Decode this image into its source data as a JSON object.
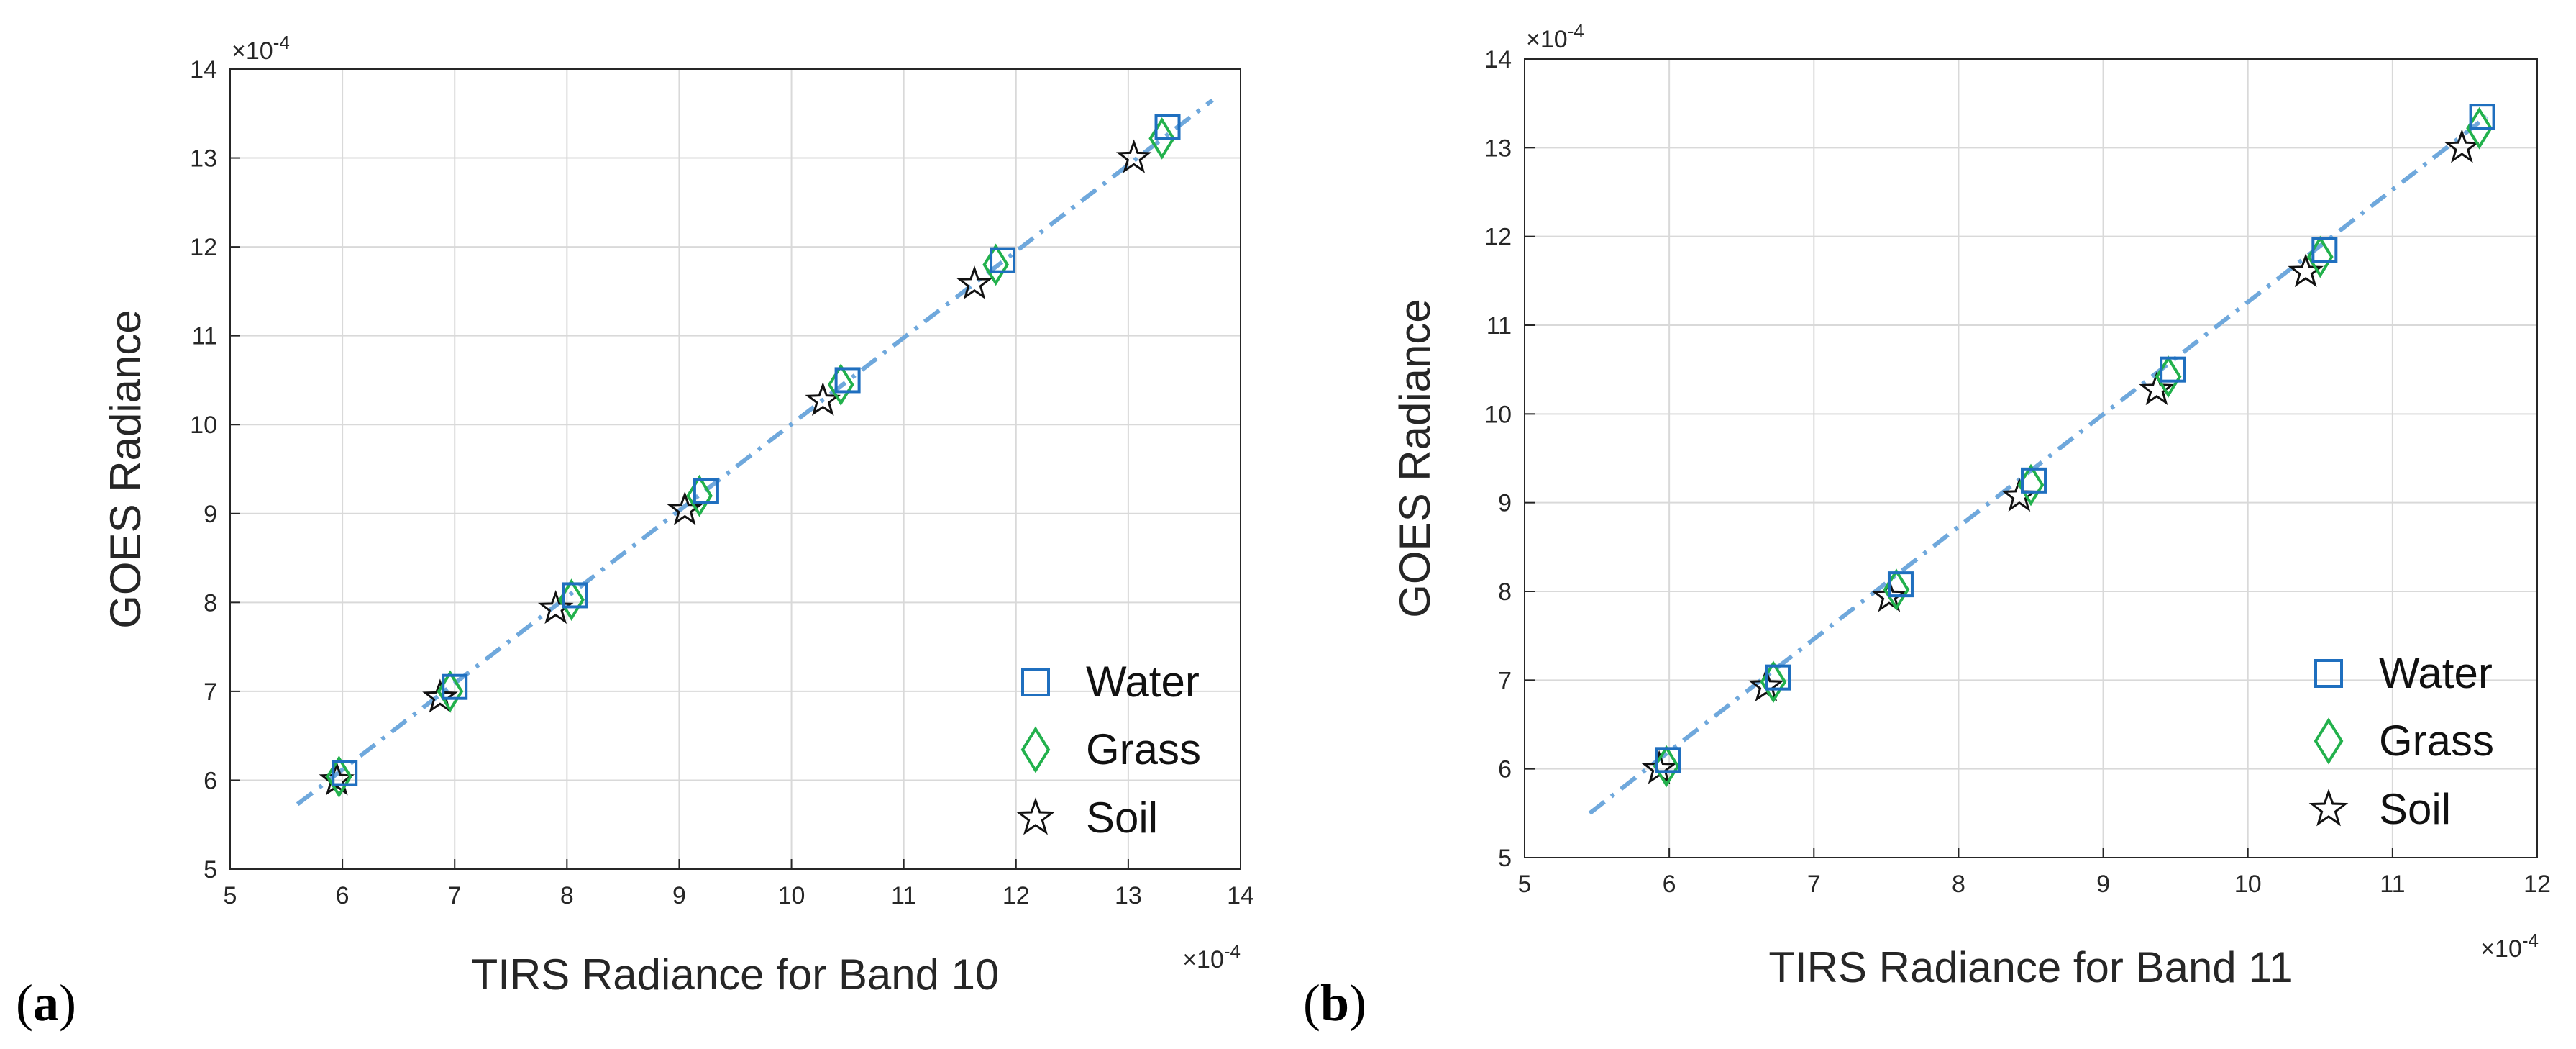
{
  "colors": {
    "water": "#1f6fbf",
    "grass": "#22b14c",
    "soil": "#111111",
    "fit_line": "#6fa8dc",
    "grid": "#d9d9d9",
    "axes": "#262626"
  },
  "chart_data": [
    {
      "panel_label": "(a)",
      "panel_letter": "a",
      "type": "scatter",
      "xlabel": "TIRS Radiance for Band 10",
      "ylabel": "GOES Radiance",
      "x_exponent": "×10",
      "y_exponent": "×10",
      "exponent_power": "-4",
      "xlim": [
        5,
        14
      ],
      "ylim": [
        5,
        14
      ],
      "xticks": [
        5,
        6,
        7,
        8,
        9,
        10,
        11,
        12,
        13,
        14
      ],
      "yticks": [
        5,
        6,
        7,
        8,
        9,
        10,
        11,
        12,
        13,
        14
      ],
      "grid": true,
      "legend_position": "bottom-right",
      "series": [
        {
          "name": "Water",
          "marker": "square",
          "x": [
            6.02,
            7.0,
            8.07,
            9.24,
            10.5,
            11.88,
            13.35
          ],
          "y": [
            6.08,
            7.05,
            8.08,
            9.25,
            10.5,
            11.85,
            13.35
          ]
        },
        {
          "name": "Grass",
          "marker": "diamond",
          "x": [
            5.97,
            6.96,
            8.04,
            9.18,
            10.44,
            11.82,
            13.3
          ],
          "y": [
            6.04,
            7.0,
            8.03,
            9.2,
            10.45,
            11.8,
            13.22
          ]
        },
        {
          "name": "Soil",
          "marker": "star",
          "x": [
            5.95,
            6.87,
            7.9,
            9.05,
            10.28,
            11.63,
            13.05
          ],
          "y": [
            6.0,
            6.93,
            7.93,
            9.04,
            10.27,
            11.58,
            13.0
          ]
        }
      ],
      "fit_line": {
        "style": "dash-dot",
        "x": [
          5.6,
          13.75
        ],
        "y": [
          5.73,
          13.65
        ]
      }
    },
    {
      "panel_label": "(b)",
      "panel_letter": "b",
      "type": "scatter",
      "xlabel": "TIRS Radiance for Band 11",
      "ylabel": "GOES Radiance",
      "x_exponent": "×10",
      "y_exponent": "×10",
      "exponent_power": "-4",
      "xlim": [
        5,
        12
      ],
      "ylim": [
        5,
        14
      ],
      "xticks": [
        5,
        6,
        7,
        8,
        9,
        10,
        11,
        12
      ],
      "yticks": [
        5,
        6,
        7,
        8,
        9,
        10,
        11,
        12,
        13,
        14
      ],
      "grid": true,
      "legend_position": "bottom-right",
      "series": [
        {
          "name": "Water",
          "marker": "square",
          "x": [
            5.99,
            6.75,
            7.6,
            8.52,
            9.48,
            10.53,
            11.62
          ],
          "y": [
            6.1,
            7.03,
            8.08,
            9.25,
            10.5,
            11.85,
            13.35
          ]
        },
        {
          "name": "Grass",
          "marker": "diamond",
          "x": [
            5.98,
            6.72,
            7.57,
            8.5,
            9.45,
            10.5,
            11.6
          ],
          "y": [
            6.03,
            6.98,
            8.02,
            9.2,
            10.42,
            11.77,
            13.22
          ]
        },
        {
          "name": "Soil",
          "marker": "star",
          "x": [
            5.93,
            6.67,
            7.52,
            8.42,
            9.37,
            10.4,
            11.48
          ],
          "y": [
            6.0,
            6.93,
            7.94,
            9.07,
            10.27,
            11.6,
            13.0
          ]
        }
      ],
      "fit_line": {
        "style": "dash-dot",
        "x": [
          5.45,
          11.65
        ],
        "y": [
          5.5,
          13.35
        ]
      }
    }
  ]
}
